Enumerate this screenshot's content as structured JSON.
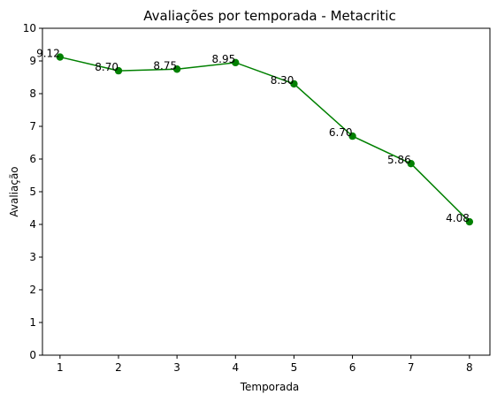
{
  "chart_data": {
    "type": "line",
    "title": "Avaliações por temporada - Metacritic",
    "xlabel": "Temporada",
    "ylabel": "Avaliação",
    "x": [
      1,
      2,
      3,
      4,
      5,
      6,
      7,
      8
    ],
    "xticks": [
      "1",
      "2",
      "3",
      "4",
      "5",
      "6",
      "7",
      "8"
    ],
    "yticks": [
      "0",
      "1",
      "2",
      "3",
      "4",
      "5",
      "6",
      "7",
      "8",
      "9",
      "10"
    ],
    "ylim": [
      0,
      10
    ],
    "xlim": [
      0.7,
      8.35
    ],
    "series": [
      {
        "values": [
          9.12,
          8.7,
          8.75,
          8.95,
          8.3,
          6.7,
          5.86,
          4.08
        ],
        "labels": [
          "9.12",
          "8.70",
          "8.75",
          "8.95",
          "8.30",
          "6.70",
          "5.86",
          "4.08"
        ],
        "color": "#008000",
        "marker": "circle"
      }
    ],
    "grid": false,
    "legend": "none"
  }
}
